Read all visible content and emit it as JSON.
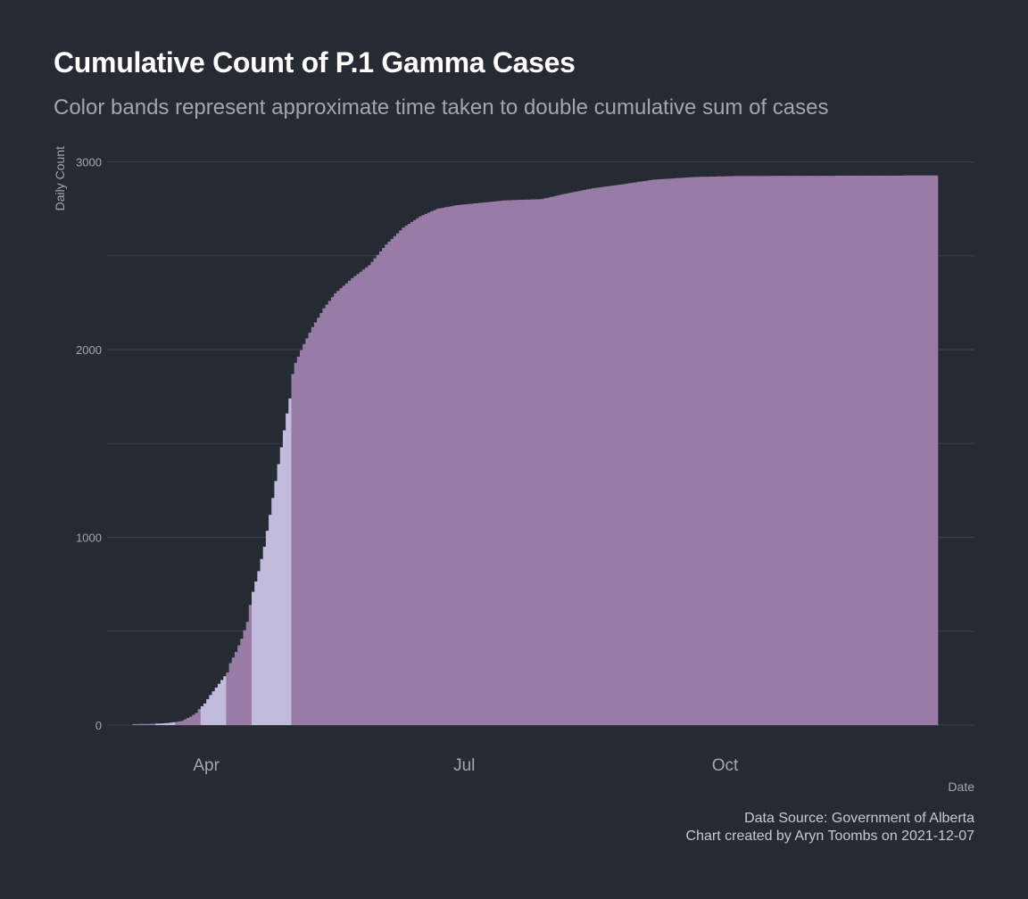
{
  "chart_data": {
    "type": "bar",
    "title": "Cumulative Count of P.1 Gamma Cases",
    "subtitle": "Color bands represent approximate time taken to double cumulative sum of cases",
    "xlabel": "Date",
    "ylabel": "Daily Count",
    "ylim": [
      0,
      3000
    ],
    "y_ticks": [
      0,
      1000,
      2000,
      3000
    ],
    "x_ticks": [
      {
        "date": "2021-04-01",
        "label": "Apr"
      },
      {
        "date": "2021-07-01",
        "label": "Jul"
      },
      {
        "date": "2021-10-01",
        "label": "Oct"
      }
    ],
    "x_range": [
      "2021-02-25",
      "2021-12-28"
    ],
    "grid": true,
    "legend": "none",
    "band_colors": [
      "#997ca6",
      "#c2bcdc"
    ],
    "bands": [
      {
        "start": "2021-03-06",
        "end": "2021-03-13",
        "color_index": 0
      },
      {
        "start": "2021-03-14",
        "end": "2021-03-20",
        "color_index": 1
      },
      {
        "start": "2021-03-21",
        "end": "2021-03-29",
        "color_index": 0
      },
      {
        "start": "2021-03-30",
        "end": "2021-04-07",
        "color_index": 1
      },
      {
        "start": "2021-04-08",
        "end": "2021-04-16",
        "color_index": 0
      },
      {
        "start": "2021-04-17",
        "end": "2021-04-30",
        "color_index": 1
      },
      {
        "start": "2021-05-01",
        "end": "2021-12-14",
        "color_index": 0
      }
    ],
    "series": [
      {
        "points": [
          [
            "2021-03-06",
            5
          ],
          [
            "2021-03-10",
            6
          ],
          [
            "2021-03-13",
            7
          ],
          [
            "2021-03-16",
            9
          ],
          [
            "2021-03-18",
            11
          ],
          [
            "2021-03-20",
            15
          ],
          [
            "2021-03-21",
            17
          ],
          [
            "2021-03-23",
            22
          ],
          [
            "2021-03-24",
            30
          ],
          [
            "2021-03-26",
            45
          ],
          [
            "2021-03-28",
            65
          ],
          [
            "2021-03-29",
            85
          ],
          [
            "2021-03-31",
            115
          ],
          [
            "2021-04-02",
            160
          ],
          [
            "2021-04-04",
            200
          ],
          [
            "2021-04-06",
            240
          ],
          [
            "2021-04-08",
            280
          ],
          [
            "2021-04-09",
            330
          ],
          [
            "2021-04-11",
            390
          ],
          [
            "2021-04-13",
            460
          ],
          [
            "2021-04-15",
            550
          ],
          [
            "2021-04-16",
            640
          ],
          [
            "2021-04-17",
            710
          ],
          [
            "2021-04-19",
            820
          ],
          [
            "2021-04-21",
            950
          ],
          [
            "2021-04-23",
            1120
          ],
          [
            "2021-04-25",
            1300
          ],
          [
            "2021-04-27",
            1480
          ],
          [
            "2021-04-29",
            1660
          ],
          [
            "2021-04-30",
            1740
          ],
          [
            "2021-05-01",
            1870
          ],
          [
            "2021-05-02",
            1930
          ],
          [
            "2021-05-05",
            2030
          ],
          [
            "2021-05-08",
            2120
          ],
          [
            "2021-05-12",
            2220
          ],
          [
            "2021-05-16",
            2300
          ],
          [
            "2021-05-22",
            2380
          ],
          [
            "2021-05-28",
            2450
          ],
          [
            "2021-06-03",
            2560
          ],
          [
            "2021-06-09",
            2650
          ],
          [
            "2021-06-15",
            2710
          ],
          [
            "2021-06-21",
            2750
          ],
          [
            "2021-06-28",
            2770
          ],
          [
            "2021-07-05",
            2780
          ],
          [
            "2021-07-15",
            2795
          ],
          [
            "2021-07-28",
            2802
          ],
          [
            "2021-08-05",
            2830
          ],
          [
            "2021-08-15",
            2860
          ],
          [
            "2021-08-25",
            2880
          ],
          [
            "2021-09-05",
            2905
          ],
          [
            "2021-09-20",
            2920
          ],
          [
            "2021-10-05",
            2925
          ],
          [
            "2021-12-14",
            2928
          ]
        ]
      }
    ]
  }
}
